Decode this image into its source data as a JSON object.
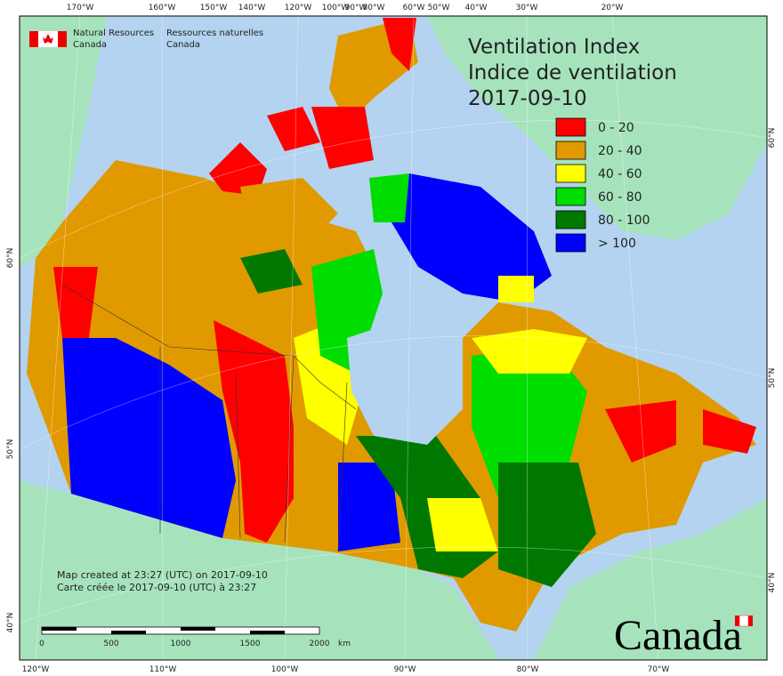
{
  "header": {
    "department_en": [
      "Natural Resources",
      "Canada"
    ],
    "department_fr": [
      "Ressources naturelles",
      "Canada"
    ]
  },
  "title": {
    "line1": "Ventilation Index",
    "line2": "Indice de ventilation",
    "date": "2017-09-10"
  },
  "legend": [
    {
      "label": "0 - 20",
      "color": "#ff0000"
    },
    {
      "label": "20 - 40",
      "color": "#e09a00"
    },
    {
      "label": "40 - 60",
      "color": "#ffff00"
    },
    {
      "label": "60 - 80",
      "color": "#00dd00"
    },
    {
      "label": "80 - 100",
      "color": "#007800"
    },
    {
      "label": "> 100",
      "color": "#0000ff"
    }
  ],
  "graticule": {
    "top": [
      "170°W",
      "160°W",
      "150°W",
      "140°W",
      "120°W",
      "100°W",
      "90°W",
      "80°W",
      "60°W",
      "50°W",
      "40°W",
      "30°W",
      "20°W"
    ],
    "bottom": [
      "120°W",
      "110°W",
      "100°W",
      "90°W",
      "80°W",
      "70°W"
    ],
    "left": [
      "60°N",
      "50°N",
      "40°N"
    ],
    "right": [
      "60°N",
      "50°N",
      "40°N"
    ]
  },
  "notes": [
    "Map created at 23:27 (UTC) on 2017-09-10",
    "Carte créée le 2017-09-10 (UTC) à 23:27"
  ],
  "scale": {
    "ticks": [
      "0",
      "500",
      "1000",
      "1500",
      "2000"
    ],
    "unit": "km"
  },
  "wordmark": "Canada"
}
